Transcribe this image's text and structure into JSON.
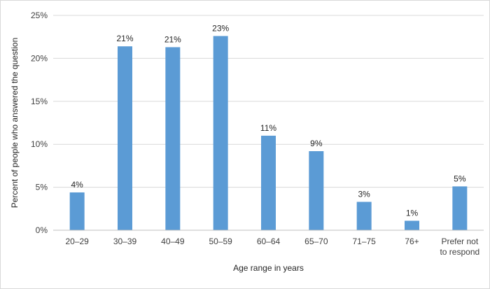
{
  "chart_data": {
    "type": "bar",
    "title": "",
    "xlabel": "Age range in years",
    "ylabel": "Percent of people who answered the question",
    "categories": [
      "20–29",
      "30–39",
      "40–49",
      "50–59",
      "60–64",
      "65–70",
      "71–75",
      "76+",
      "Prefer not to respond"
    ],
    "category_lines": [
      [
        "20–29"
      ],
      [
        "30–39"
      ],
      [
        "40–49"
      ],
      [
        "50–59"
      ],
      [
        "60–64"
      ],
      [
        "65–70"
      ],
      [
        "71–75"
      ],
      [
        "76+"
      ],
      [
        "Prefer not",
        "to respond"
      ]
    ],
    "values": [
      4.4,
      21.4,
      21.3,
      22.6,
      11.0,
      9.2,
      3.3,
      1.1,
      5.1
    ],
    "data_labels": [
      "4%",
      "21%",
      "21%",
      "23%",
      "11%",
      "9%",
      "3%",
      "1%",
      "5%"
    ],
    "ylim": [
      0,
      25
    ],
    "yticks": [
      0,
      5,
      10,
      15,
      20,
      25
    ],
    "ytick_labels": [
      "0%",
      "5%",
      "10%",
      "15%",
      "20%",
      "25%"
    ],
    "bar_color": "#5b9bd5",
    "grid": true,
    "legend": "none"
  }
}
